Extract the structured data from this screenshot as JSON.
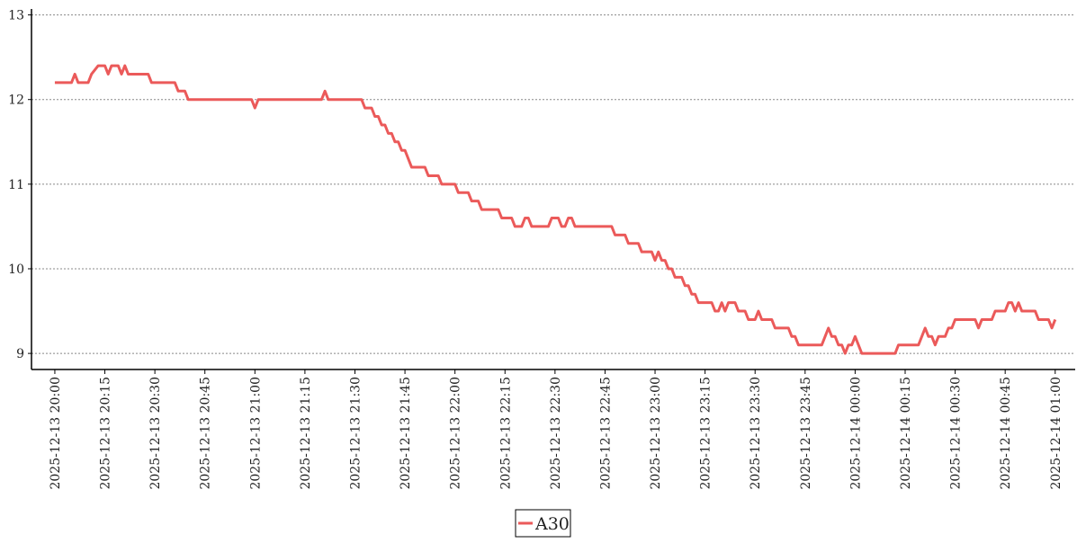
{
  "chart_data": {
    "type": "line",
    "xlim": [
      "2025-12-13 19:53",
      "2025-12-14 01:06"
    ],
    "ylim": [
      8.81,
      13.07
    ],
    "yticks": [
      9,
      10,
      11,
      12,
      13
    ],
    "xticks": [
      "2025-12-13 20:00",
      "2025-12-13 20:15",
      "2025-12-13 20:30",
      "2025-12-13 20:45",
      "2025-12-13 21:00",
      "2025-12-13 21:15",
      "2025-12-13 21:30",
      "2025-12-13 21:45",
      "2025-12-13 22:00",
      "2025-12-13 22:15",
      "2025-12-13 22:30",
      "2025-12-13 22:45",
      "2025-12-13 23:00",
      "2025-12-13 23:15",
      "2025-12-13 23:30",
      "2025-12-13 23:45",
      "2025-12-14 00:00",
      "2025-12-14 00:15",
      "2025-12-14 00:30",
      "2025-12-14 00:45",
      "2025-12-14 01:00"
    ],
    "grid": true,
    "x": [
      "2025-12-13 20:00",
      "2025-12-13 20:05",
      "2025-12-13 20:06",
      "2025-12-13 20:07",
      "2025-12-13 20:10",
      "2025-12-13 20:11",
      "2025-12-13 20:13",
      "2025-12-13 20:15",
      "2025-12-13 20:16",
      "2025-12-13 20:17",
      "2025-12-13 20:19",
      "2025-12-13 20:20",
      "2025-12-13 20:21",
      "2025-12-13 20:22",
      "2025-12-13 20:28",
      "2025-12-13 20:29",
      "2025-12-13 20:36",
      "2025-12-13 20:37",
      "2025-12-13 20:39",
      "2025-12-13 20:40",
      "2025-12-13 20:59",
      "2025-12-13 21:00",
      "2025-12-13 21:01",
      "2025-12-13 21:20",
      "2025-12-13 21:21",
      "2025-12-13 21:22",
      "2025-12-13 21:32",
      "2025-12-13 21:33",
      "2025-12-13 21:35",
      "2025-12-13 21:36",
      "2025-12-13 21:37",
      "2025-12-13 21:38",
      "2025-12-13 21:39",
      "2025-12-13 21:40",
      "2025-12-13 21:41",
      "2025-12-13 21:42",
      "2025-12-13 21:43",
      "2025-12-13 21:44",
      "2025-12-13 21:45",
      "2025-12-13 21:47",
      "2025-12-13 21:51",
      "2025-12-13 21:52",
      "2025-12-13 21:55",
      "2025-12-13 21:56",
      "2025-12-13 22:00",
      "2025-12-13 22:01",
      "2025-12-13 22:04",
      "2025-12-13 22:05",
      "2025-12-13 22:07",
      "2025-12-13 22:08",
      "2025-12-13 22:13",
      "2025-12-13 22:14",
      "2025-12-13 22:17",
      "2025-12-13 22:18",
      "2025-12-13 22:20",
      "2025-12-13 22:21",
      "2025-12-13 22:22",
      "2025-12-13 22:23",
      "2025-12-13 22:28",
      "2025-12-13 22:29",
      "2025-12-13 22:31",
      "2025-12-13 22:32",
      "2025-12-13 22:33",
      "2025-12-13 22:34",
      "2025-12-13 22:35",
      "2025-12-13 22:36",
      "2025-12-13 22:47",
      "2025-12-13 22:48",
      "2025-12-13 22:51",
      "2025-12-13 22:52",
      "2025-12-13 22:55",
      "2025-12-13 22:56",
      "2025-12-13 22:59",
      "2025-12-13 23:00",
      "2025-12-13 23:01",
      "2025-12-13 23:02",
      "2025-12-13 23:03",
      "2025-12-13 23:04",
      "2025-12-13 23:05",
      "2025-12-13 23:06",
      "2025-12-13 23:08",
      "2025-12-13 23:09",
      "2025-12-13 23:10",
      "2025-12-13 23:11",
      "2025-12-13 23:12",
      "2025-12-13 23:13",
      "2025-12-13 23:17",
      "2025-12-13 23:18",
      "2025-12-13 23:19",
      "2025-12-13 23:20",
      "2025-12-13 23:21",
      "2025-12-13 23:22",
      "2025-12-13 23:24",
      "2025-12-13 23:25",
      "2025-12-13 23:27",
      "2025-12-13 23:28",
      "2025-12-13 23:30",
      "2025-12-13 23:31",
      "2025-12-13 23:32",
      "2025-12-13 23:35",
      "2025-12-13 23:36",
      "2025-12-13 23:40",
      "2025-12-13 23:41",
      "2025-12-13 23:42",
      "2025-12-13 23:43",
      "2025-12-13 23:50",
      "2025-12-13 23:51",
      "2025-12-13 23:52",
      "2025-12-13 23:53",
      "2025-12-13 23:54",
      "2025-12-13 23:55",
      "2025-12-13 23:56",
      "2025-12-13 23:57",
      "2025-12-13 23:58",
      "2025-12-13 23:59",
      "2025-12-14 00:00",
      "2025-12-14 00:01",
      "2025-12-14 00:02",
      "2025-12-14 00:12",
      "2025-12-14 00:13",
      "2025-12-14 00:19",
      "2025-12-14 00:20",
      "2025-12-14 00:21",
      "2025-12-14 00:22",
      "2025-12-14 00:23",
      "2025-12-14 00:24",
      "2025-12-14 00:25",
      "2025-12-14 00:27",
      "2025-12-14 00:28",
      "2025-12-14 00:29",
      "2025-12-14 00:30",
      "2025-12-14 00:36",
      "2025-12-14 00:37",
      "2025-12-14 00:38",
      "2025-12-14 00:41",
      "2025-12-14 00:42",
      "2025-12-14 00:45",
      "2025-12-14 00:46",
      "2025-12-14 00:47",
      "2025-12-14 00:48",
      "2025-12-14 00:49",
      "2025-12-14 00:50",
      "2025-12-14 00:54",
      "2025-12-14 00:55",
      "2025-12-14 00:58",
      "2025-12-14 00:59",
      "2025-12-14 01:00"
    ],
    "series": [
      {
        "name": "A30",
        "color": "#eb5a5a",
        "values": [
          12.2,
          12.2,
          12.3,
          12.2,
          12.2,
          12.3,
          12.4,
          12.4,
          12.3,
          12.4,
          12.4,
          12.3,
          12.4,
          12.3,
          12.3,
          12.2,
          12.2,
          12.1,
          12.1,
          12.0,
          12.0,
          11.9,
          12.0,
          12.0,
          12.1,
          12.0,
          12.0,
          11.9,
          11.9,
          11.8,
          11.8,
          11.7,
          11.7,
          11.6,
          11.6,
          11.5,
          11.5,
          11.4,
          11.4,
          11.2,
          11.2,
          11.1,
          11.1,
          11.0,
          11.0,
          10.9,
          10.9,
          10.8,
          10.8,
          10.7,
          10.7,
          10.6,
          10.6,
          10.5,
          10.5,
          10.6,
          10.6,
          10.5,
          10.5,
          10.6,
          10.6,
          10.5,
          10.5,
          10.6,
          10.6,
          10.5,
          10.5,
          10.4,
          10.4,
          10.3,
          10.3,
          10.2,
          10.2,
          10.1,
          10.2,
          10.1,
          10.1,
          10.0,
          10.0,
          9.9,
          9.9,
          9.8,
          9.8,
          9.7,
          9.7,
          9.6,
          9.6,
          9.5,
          9.5,
          9.6,
          9.5,
          9.6,
          9.6,
          9.5,
          9.5,
          9.4,
          9.4,
          9.5,
          9.4,
          9.4,
          9.3,
          9.3,
          9.2,
          9.2,
          9.1,
          9.1,
          9.2,
          9.3,
          9.2,
          9.2,
          9.1,
          9.1,
          9.0,
          9.1,
          9.1,
          9.2,
          9.1,
          9.0,
          9.0,
          9.1,
          9.1,
          9.2,
          9.3,
          9.2,
          9.2,
          9.1,
          9.2,
          9.2,
          9.3,
          9.3,
          9.4,
          9.4,
          9.3,
          9.4,
          9.4,
          9.5,
          9.5,
          9.6,
          9.6,
          9.5,
          9.6,
          9.5,
          9.5,
          9.4,
          9.4,
          9.3,
          9.4
        ]
      }
    ]
  }
}
